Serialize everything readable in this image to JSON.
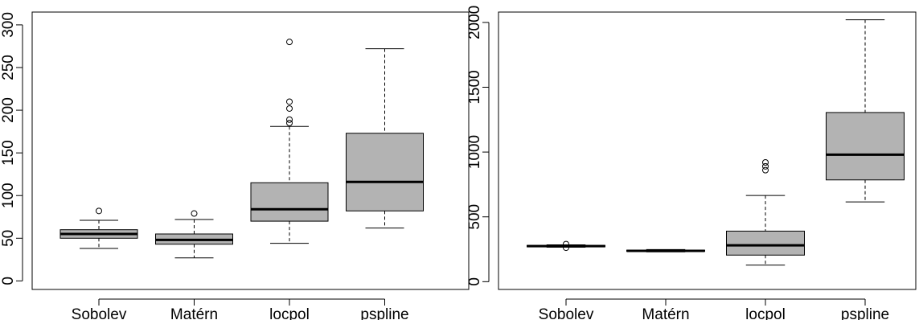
{
  "chart_data": [
    {
      "type": "boxplot",
      "title": "",
      "xlabel": "",
      "ylabel": "",
      "ylim": [
        -10,
        315
      ],
      "yticks": [
        0,
        50,
        100,
        150,
        200,
        250,
        300
      ],
      "grid": false,
      "categories": [
        "Sobolev",
        "Matérn",
        "locpol",
        "pspline"
      ],
      "boxes": [
        {
          "min": 38,
          "q1": 50,
          "median": 55,
          "q3": 60,
          "max": 71,
          "outliers": [
            82
          ]
        },
        {
          "min": 27,
          "q1": 43,
          "median": 48,
          "q3": 55,
          "max": 72,
          "outliers": [
            79
          ]
        },
        {
          "min": 44,
          "q1": 70,
          "median": 84,
          "q3": 115,
          "max": 181,
          "outliers": [
            185,
            189,
            202,
            210,
            280
          ]
        },
        {
          "min": 62,
          "q1": 82,
          "median": 116,
          "q3": 173,
          "max": 272,
          "outliers": []
        }
      ],
      "colors": {
        "box_fill": "#b3b3b3",
        "stroke": "#000000"
      }
    },
    {
      "type": "boxplot",
      "title": "",
      "xlabel": "",
      "ylabel": "",
      "ylim": [
        -60,
        2080
      ],
      "yticks": [
        0,
        500,
        1000,
        1500,
        2000
      ],
      "grid": false,
      "categories": [
        "Sobolev",
        "Matérn",
        "locpol",
        "pspline"
      ],
      "boxes": [
        {
          "min": 266,
          "q1": 269,
          "median": 274,
          "q3": 280,
          "max": 284,
          "outliers": [
            262,
            290
          ]
        },
        {
          "min": 230,
          "q1": 234,
          "median": 238,
          "q3": 243,
          "max": 248,
          "outliers": []
        },
        {
          "min": 128,
          "q1": 205,
          "median": 280,
          "q3": 390,
          "max": 665,
          "outliers": [
            860,
            890,
            920
          ]
        },
        {
          "min": 615,
          "q1": 785,
          "median": 980,
          "q3": 1305,
          "max": 2020,
          "outliers": []
        }
      ],
      "colors": {
        "box_fill": "#b3b3b3",
        "stroke": "#000000"
      }
    }
  ]
}
